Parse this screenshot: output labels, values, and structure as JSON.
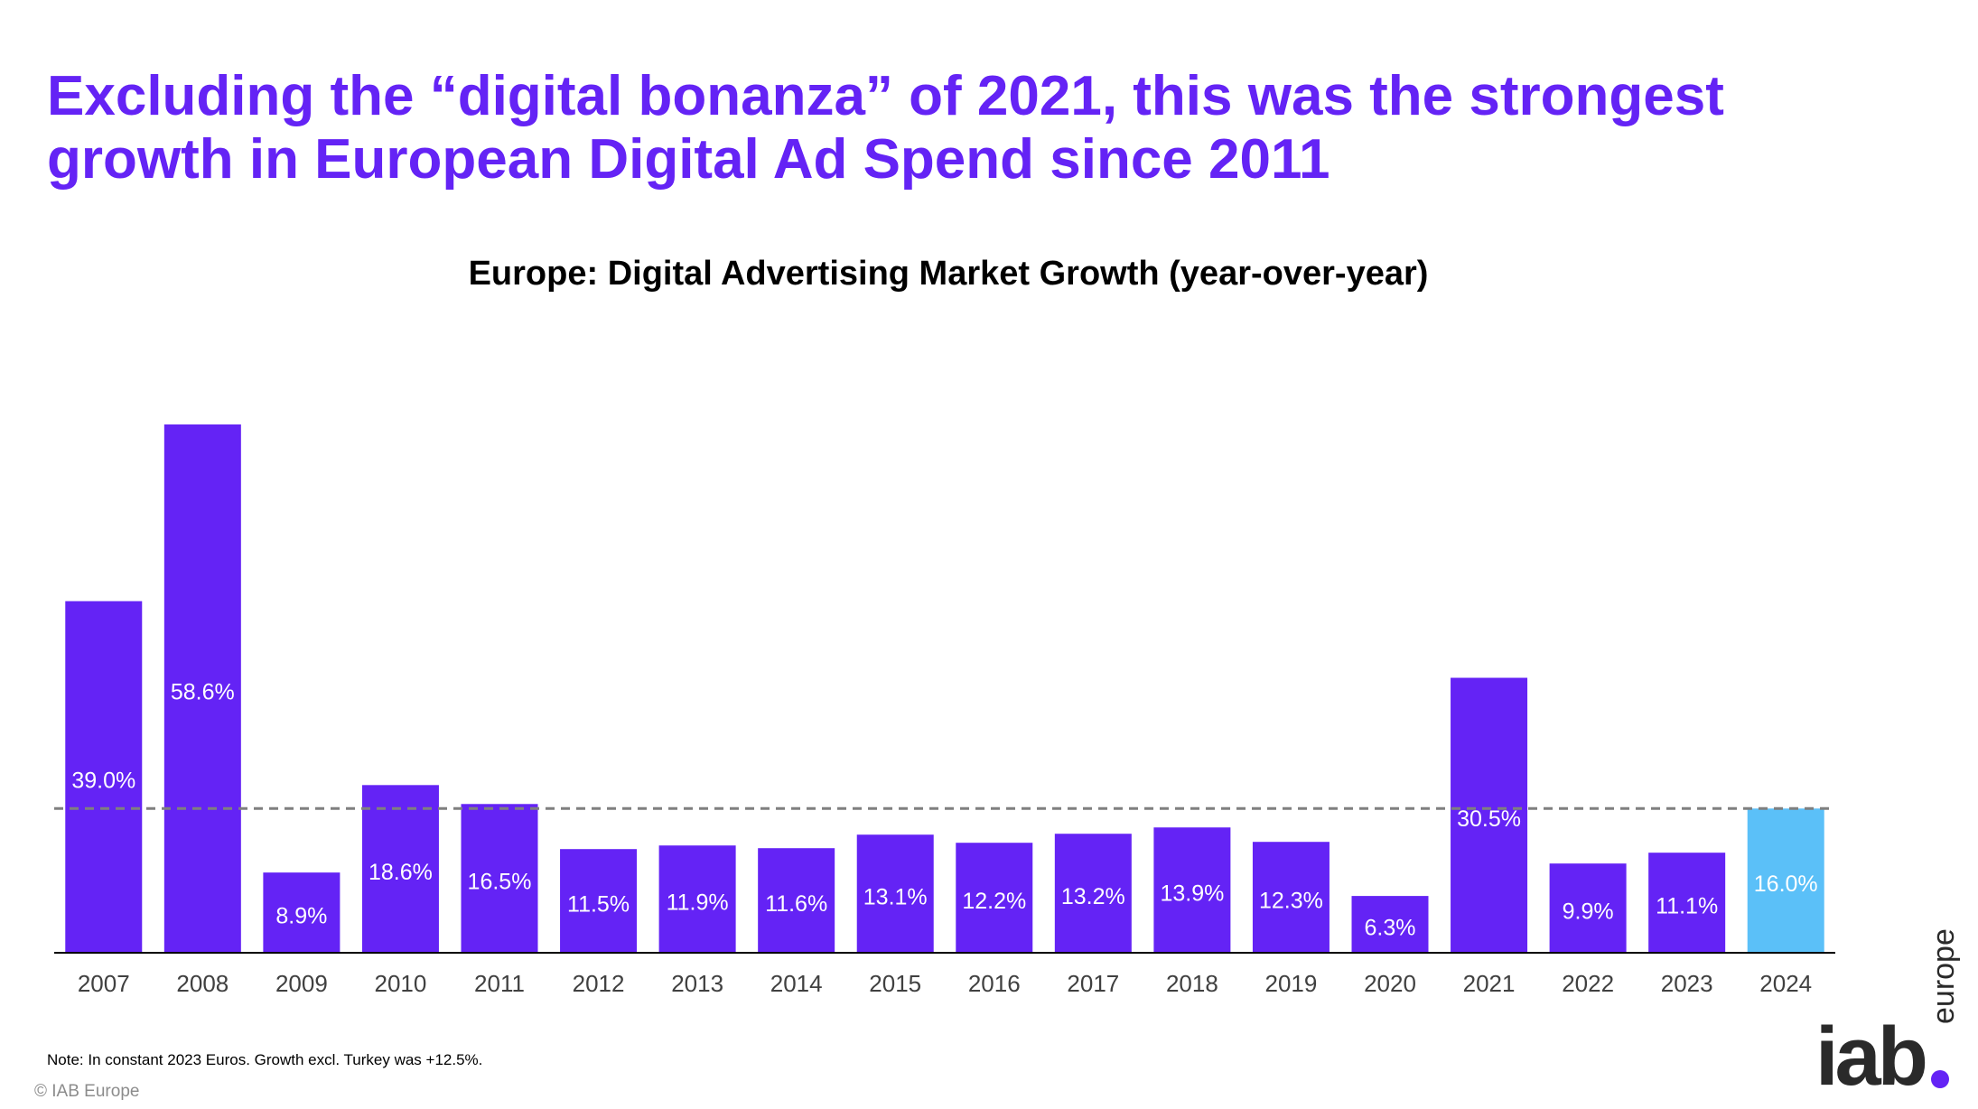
{
  "headline": "Excluding the “digital bonanza” of 2021, this was the strongest growth in European Digital Ad Spend since 2011",
  "note": "Note: In constant  2023 Euros. Growth excl. Turkey was +12.5%.",
  "copyright": "© IAB Europe",
  "logo": {
    "main": "iab",
    "sub": "europe"
  },
  "colors": {
    "bar": "#6423F5",
    "highlight": "#5BC0F8",
    "reference_line": "#7f7f7f",
    "label": "#ffffff",
    "axis_text": "#404040"
  },
  "chart_data": {
    "type": "bar",
    "title": "Europe: Digital Advertising Market Growth (year-over-year)",
    "xlabel": "",
    "ylabel": "",
    "categories": [
      "2007",
      "2008",
      "2009",
      "2010",
      "2011",
      "2012",
      "2013",
      "2014",
      "2015",
      "2016",
      "2017",
      "2018",
      "2019",
      "2020",
      "2021",
      "2022",
      "2023",
      "2024"
    ],
    "values": [
      39.0,
      58.6,
      8.9,
      18.6,
      16.5,
      11.5,
      11.9,
      11.6,
      13.1,
      12.2,
      13.2,
      13.9,
      12.3,
      6.3,
      30.5,
      9.9,
      11.1,
      16.0
    ],
    "labels": [
      "39.0%",
      "58.6%",
      "8.9%",
      "18.6%",
      "16.5%",
      "11.5%",
      "11.9%",
      "11.6%",
      "13.1%",
      "12.2%",
      "13.2%",
      "13.9%",
      "12.3%",
      "6.3%",
      "30.5%",
      "9.9%",
      "11.1%",
      "16.0%"
    ],
    "highlight_category": "2024",
    "reference_line": 16.0,
    "ylim": [
      0,
      62
    ],
    "grid": false,
    "legend": "none"
  }
}
